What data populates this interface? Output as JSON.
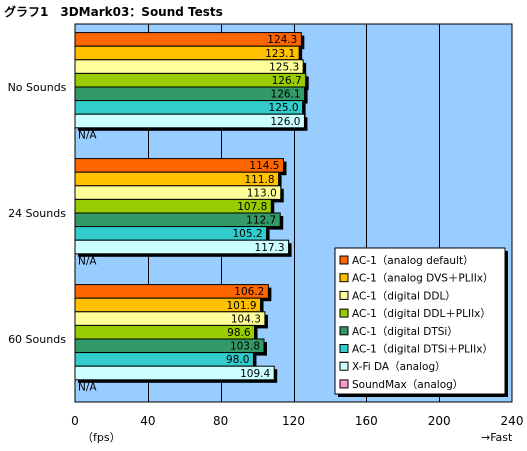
{
  "chart_data": {
    "type": "bar",
    "orientation": "horizontal",
    "title": "グラフ1　3DMark03：Sound Tests",
    "xlabel": "（fps）",
    "x_direction_note": "→Fast",
    "xlim": [
      0,
      240
    ],
    "x_ticks": [
      0,
      40,
      80,
      120,
      160,
      200,
      240
    ],
    "grid": true,
    "legend_position": "bottom-right",
    "plot_background": "#99ccff",
    "categories": [
      "No Sounds",
      "24 Sounds",
      "60 Sounds"
    ],
    "series": [
      {
        "name": "AC-1（analog default）",
        "color": "#ff6600",
        "values": [
          124.3,
          114.5,
          106.2
        ],
        "labels": [
          "124.3",
          "114.5",
          "106.2"
        ]
      },
      {
        "name": "AC-1（analog DVS＋PLIIx）",
        "color": "#ffc000",
        "values": [
          123.1,
          111.8,
          101.9
        ],
        "labels": [
          "123.1",
          "111.8",
          "101.9"
        ]
      },
      {
        "name": "AC-1（digital DDL）",
        "color": "#ffff99",
        "values": [
          125.3,
          113.0,
          104.3
        ],
        "labels": [
          "125.3",
          "113.0",
          "104.3"
        ]
      },
      {
        "name": "AC-1（digital DDL＋PLIIx）",
        "color": "#99cc00",
        "values": [
          126.7,
          107.8,
          98.6
        ],
        "labels": [
          "126.7",
          "107.8",
          "98.6"
        ]
      },
      {
        "name": "AC-1（digital DTSi）",
        "color": "#339966",
        "values": [
          126.1,
          112.7,
          103.8
        ],
        "labels": [
          "126.1",
          "112.7",
          "103.8"
        ]
      },
      {
        "name": "AC-1（digital DTSi＋PLIIx）",
        "color": "#33cccc",
        "values": [
          125.0,
          105.2,
          98.0
        ],
        "labels": [
          "125.0",
          "105.2",
          "98.0"
        ]
      },
      {
        "name": "X-Fi DA（analog）",
        "color": "#ccffff",
        "values": [
          126.0,
          117.3,
          109.4
        ],
        "labels": [
          "126.0",
          "117.3",
          "109.4"
        ]
      },
      {
        "name": "SoundMax（analog）",
        "color": "#ff99cc",
        "values": [
          null,
          null,
          null
        ],
        "labels": [
          "N/A",
          "N/A",
          "N/A"
        ]
      }
    ]
  }
}
